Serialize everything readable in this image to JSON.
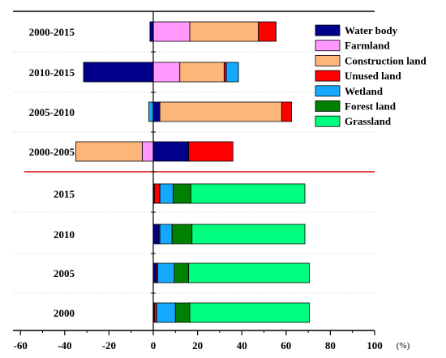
{
  "chart_data": {
    "type": "bar",
    "orientation": "horizontal",
    "stacking": "diverging",
    "x_unit_label": "(%)",
    "xlim": [
      -60,
      100
    ],
    "x_ticks": [
      -60,
      -40,
      -20,
      0,
      20,
      40,
      60,
      80,
      100
    ],
    "categories": [
      "2000-2015",
      "2010-2015",
      "2005-2010",
      "2000-2005",
      "2015",
      "2010",
      "2005",
      "2000"
    ],
    "legend_position": "top-right",
    "series": [
      {
        "name": "Water body",
        "color": "#00008b",
        "values": [
          -1.5,
          -31.5,
          3.0,
          16.0,
          0.5,
          2.5,
          1.5,
          0.5
        ]
      },
      {
        "name": "Farmland",
        "color": "#ff99ff",
        "values": [
          16.5,
          12.0,
          0,
          -5.0,
          0,
          0,
          0,
          0
        ]
      },
      {
        "name": "Construction land",
        "color": "#fcb67a",
        "values": [
          31.0,
          20.0,
          55.0,
          -30.0,
          0,
          0,
          0,
          0
        ]
      },
      {
        "name": "Unused land",
        "color": "#ff0000",
        "values": [
          8.0,
          1.0,
          4.5,
          20.0,
          2.5,
          0.5,
          0.5,
          1.0
        ]
      },
      {
        "name": "Wetland",
        "color": "#14a9ff",
        "values": [
          0,
          5.5,
          -2.0,
          0,
          6.0,
          5.5,
          7.5,
          8.5
        ]
      },
      {
        "name": "Forest land",
        "color": "#008000",
        "values": [
          0,
          0,
          0,
          0,
          8.0,
          9.0,
          6.5,
          6.5
        ]
      },
      {
        "name": "Grassland",
        "color": "#00ff7f",
        "values": [
          0,
          0,
          0,
          0,
          51.5,
          51.0,
          54.5,
          54.0
        ]
      }
    ]
  }
}
